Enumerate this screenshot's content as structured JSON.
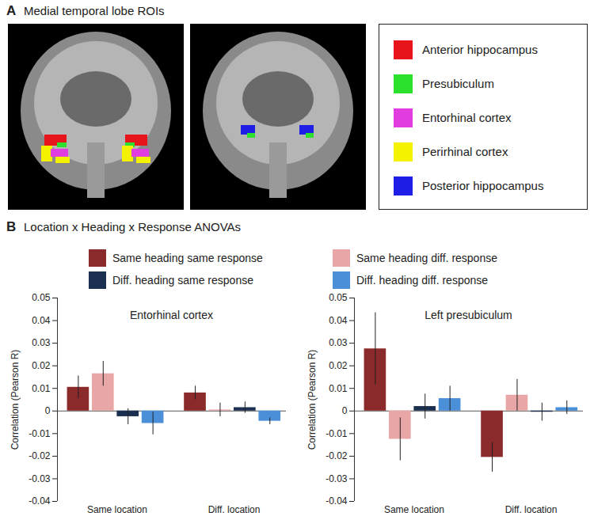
{
  "panel_a": {
    "label": "A",
    "title": "Medial temporal lobe ROIs",
    "legend": [
      {
        "name": "Anterior hippocampus",
        "color": "#e8141b"
      },
      {
        "name": "Presubiculum",
        "color": "#2ee02e"
      },
      {
        "name": "Entorhinal cortex",
        "color": "#e03ce0"
      },
      {
        "name": "Perirhinal cortex",
        "color": "#f5f200"
      },
      {
        "name": "Posterior hippocampus",
        "color": "#1e1ee6"
      }
    ]
  },
  "panel_b": {
    "label": "B",
    "title": "Location x Heading x Response ANOVAs"
  },
  "chart_data": [
    {
      "type": "bar",
      "title": "Entorhinal cortex",
      "ylabel": "Correlation (Pearson R)",
      "categories": [
        "Same location",
        "Diff. location"
      ],
      "series": [
        {
          "name": "Same heading same response",
          "color": "#8b2a2a",
          "values": [
            0.0105,
            0.008
          ],
          "errors": [
            0.005,
            0.003
          ]
        },
        {
          "name": "Same heading diff. response",
          "color": "#e8a6a6",
          "values": [
            0.0165,
            0.0005
          ],
          "errors": [
            0.0055,
            0.003
          ]
        },
        {
          "name": "Diff. heading same response",
          "color": "#1b2f50",
          "values": [
            -0.0025,
            0.0015
          ],
          "errors": [
            0.0035,
            0.0025
          ]
        },
        {
          "name": "Diff. heading diff. response",
          "color": "#4b8fd8",
          "values": [
            -0.0055,
            -0.0045
          ],
          "errors": [
            0.005,
            0.0015
          ]
        }
      ],
      "ylim": [
        -0.04,
        0.05
      ],
      "yticks": [
        -0.04,
        -0.03,
        -0.02,
        -0.01,
        0,
        0.01,
        0.02,
        0.03,
        0.04,
        0.05
      ]
    },
    {
      "type": "bar",
      "title": "Left presubiculum",
      "ylabel": "Correlation (Pearson R)",
      "categories": [
        "Same location",
        "Diff. location"
      ],
      "series": [
        {
          "name": "Same heading same response",
          "color": "#8b2a2a",
          "values": [
            0.0275,
            -0.0205
          ],
          "errors": [
            0.016,
            0.0065
          ]
        },
        {
          "name": "Same heading diff. response",
          "color": "#e8a6a6",
          "values": [
            -0.0125,
            0.007
          ],
          "errors": [
            0.0095,
            0.007
          ]
        },
        {
          "name": "Diff. heading same response",
          "color": "#1b2f50",
          "values": [
            0.002,
            -0.0005
          ],
          "errors": [
            0.0055,
            0.004
          ]
        },
        {
          "name": "Diff. heading diff. response",
          "color": "#4b8fd8",
          "values": [
            0.0055,
            0.0015
          ],
          "errors": [
            0.0055,
            0.003
          ]
        }
      ],
      "ylim": [
        -0.04,
        0.05
      ],
      "yticks": [
        -0.04,
        -0.03,
        -0.02,
        -0.01,
        0,
        0.01,
        0.02,
        0.03,
        0.04,
        0.05
      ]
    }
  ]
}
